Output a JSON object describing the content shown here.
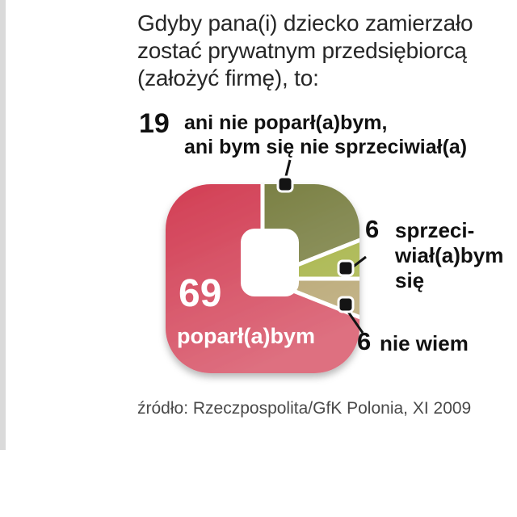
{
  "header": {
    "title_lines": [
      "Gdyby pana(i) dziecko zamierzało",
      "zostać prywatnym przedsiębiorcą",
      "(założyć firmę), to:"
    ]
  },
  "chart_data": {
    "type": "pie",
    "variant": "rounded-square-pie",
    "title": "Gdyby pana(i) dziecko zamierzało zostać prywatnym przedsiębiorcą (założyć firmę), to:",
    "unit": "%",
    "total": 100,
    "start_angle_deg": 0,
    "direction": "clockwise",
    "segments": [
      {
        "label": "ani nie poparł(a)bym, ani bym się nie sprzeciwiał(a)",
        "value": 19,
        "color": "#747a3b"
      },
      {
        "label": "sprzeciwiał(a)bym się",
        "value": 6,
        "color": "#a0ae39"
      },
      {
        "label": "nie wiem",
        "value": 6,
        "color": "#b09c63"
      },
      {
        "label": "poparł(a)bym",
        "value": 69,
        "color": "#d23e54"
      }
    ],
    "source": "źródło: Rzeczpospolita/GfK Polonia, XI 2009"
  },
  "callouts": {
    "neutral": {
      "value": "19",
      "lines": [
        "ani nie poparł(a)bym,",
        "ani bym się nie sprzeciwiał(a)"
      ]
    },
    "oppose": {
      "value": "6",
      "lines": [
        "sprzeci-",
        "wiał(a)bym",
        "się"
      ]
    },
    "dont_know": {
      "value": "6",
      "label": "nie wiem"
    },
    "support": {
      "value": "69",
      "label": "poparł(a)bym"
    }
  },
  "footer": {
    "source": "źródło: Rzeczpospolita/GfK Polonia, XI 2009"
  }
}
